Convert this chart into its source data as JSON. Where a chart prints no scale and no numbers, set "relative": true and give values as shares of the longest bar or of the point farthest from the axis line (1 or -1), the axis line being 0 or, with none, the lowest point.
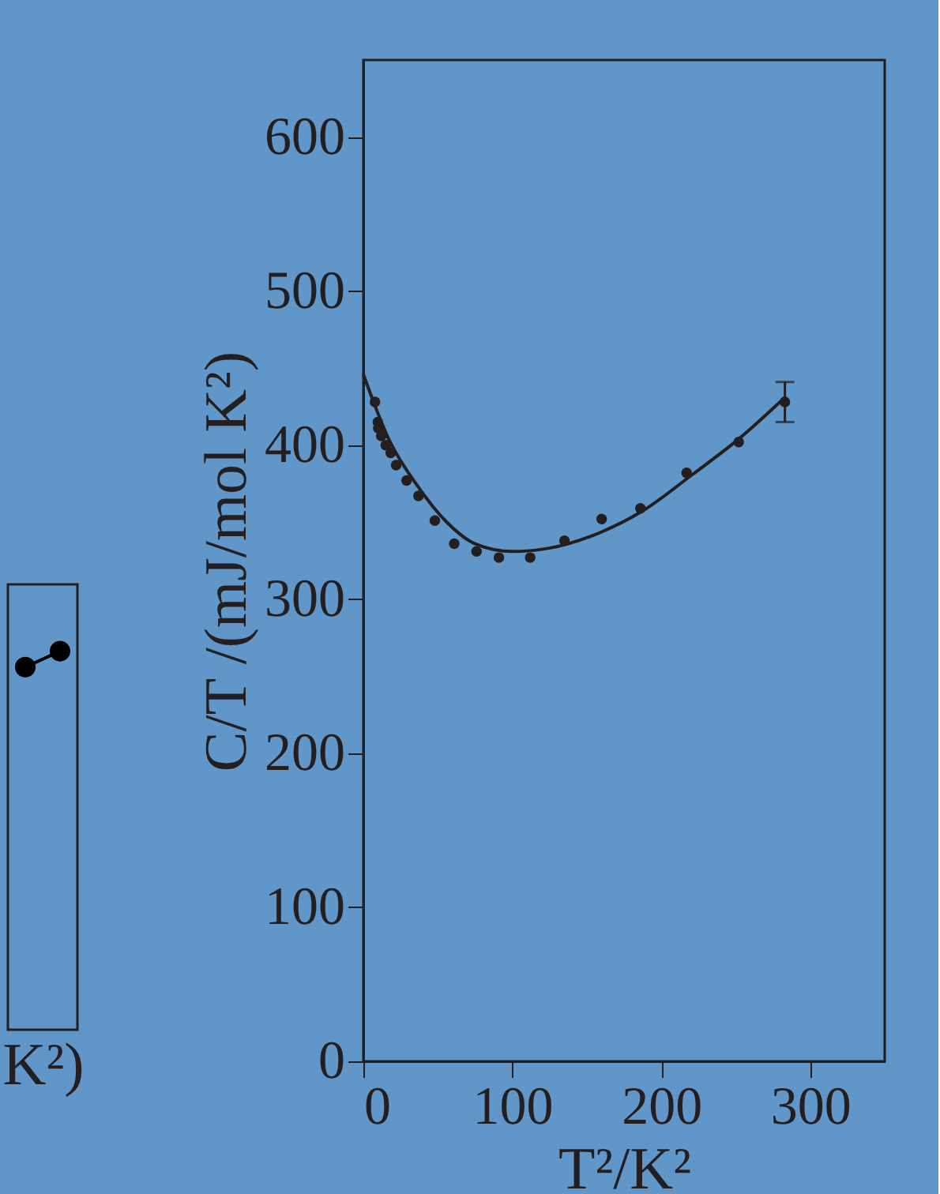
{
  "chart_data": [
    {
      "type": "line",
      "relative": true,
      "xlabel": "K²)",
      "tick_labels": false,
      "marker": "circle",
      "categories": [
        null,
        null
      ],
      "series": [
        {
          "color": "#000000",
          "values": [
            0.958,
            1
          ]
        }
      ]
    },
    {
      "type": "scatter",
      "xlabel": "T²/K²",
      "ylabel": "C/T /(mJ/mol K²)",
      "grid": false,
      "xlim": [
        0,
        350
      ],
      "ylim": [
        0,
        650
      ],
      "xticks": [
        0,
        100,
        200,
        300
      ],
      "yticks": [
        0,
        100,
        200,
        300,
        400,
        500,
        600
      ],
      "series": [
        {
          "type": "scatter",
          "marker": "circle",
          "color": "#231f20",
          "x": [
            7.8,
            9.7,
            10,
            12,
            15,
            18.4,
            22,
            29,
            37,
            48,
            61,
            76,
            91,
            112,
            135,
            160,
            186,
            217,
            252,
            283
          ],
          "values": [
            428,
            415,
            411,
            406,
            400,
            395,
            387,
            377,
            367,
            351,
            336,
            331,
            327,
            327,
            338,
            352,
            359,
            382,
            402,
            428
          ],
          "errors": [
            null,
            null,
            null,
            null,
            null,
            null,
            null,
            null,
            null,
            null,
            null,
            null,
            null,
            null,
            null,
            null,
            null,
            null,
            null,
            13
          ]
        },
        {
          "type": "line",
          "line_style": "solid",
          "color": "#231f20",
          "x": [
            0,
            17,
            36,
            56,
            75,
            100,
            124,
            153,
            187,
            221,
            252,
            283
          ],
          "values": [
            446,
            404,
            374,
            350,
            336,
            331,
            333,
            341,
            357,
            381,
            404,
            431
          ]
        }
      ]
    }
  ]
}
